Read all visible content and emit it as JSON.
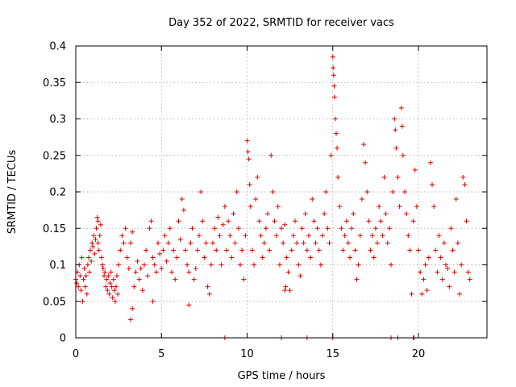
{
  "chart_data": {
    "type": "scatter",
    "title": "Day 352 of 2022, SRMTID for receiver vacs",
    "xlabel": "GPS time / hours",
    "ylabel": "SRMTID / TECUs",
    "xlim": [
      0,
      24
    ],
    "ylim": [
      0,
      0.4
    ],
    "xticks": [
      0,
      5,
      10,
      15,
      20
    ],
    "xtick_labels": [
      "0",
      "5",
      "10",
      "15",
      "20"
    ],
    "yticks": [
      0,
      0.05,
      0.1,
      0.15,
      0.2,
      0.25,
      0.3,
      0.35,
      0.4
    ],
    "ytick_labels": [
      "0",
      "0.05",
      "0.1",
      "0.15",
      "0.2",
      "0.25",
      "0.3",
      "0.35",
      "0.4"
    ],
    "grid": true,
    "marker": "plus",
    "color": "#e00000",
    "series": [
      {
        "name": "SRMTID",
        "points": [
          [
            0.0,
            0.08
          ],
          [
            0.05,
            0.075
          ],
          [
            0.1,
            0.09
          ],
          [
            0.15,
            0.07
          ],
          [
            0.2,
            0.1
          ],
          [
            0.25,
            0.085
          ],
          [
            0.3,
            0.065
          ],
          [
            0.35,
            0.11
          ],
          [
            0.4,
            0.05
          ],
          [
            0.45,
            0.08
          ],
          [
            0.5,
            0.095
          ],
          [
            0.55,
            0.07
          ],
          [
            0.6,
            0.085
          ],
          [
            0.65,
            0.06
          ],
          [
            0.7,
            0.1
          ],
          [
            0.75,
            0.11
          ],
          [
            0.8,
            0.09
          ],
          [
            0.85,
            0.12
          ],
          [
            0.9,
            0.105
          ],
          [
            0.95,
            0.13
          ],
          [
            1.0,
            0.125
          ],
          [
            1.05,
            0.14
          ],
          [
            1.1,
            0.115
          ],
          [
            1.15,
            0.135
          ],
          [
            1.2,
            0.15
          ],
          [
            1.25,
            0.165
          ],
          [
            1.3,
            0.13
          ],
          [
            1.35,
            0.12
          ],
          [
            1.4,
            0.14
          ],
          [
            1.45,
            0.155
          ],
          [
            1.5,
            0.11
          ],
          [
            1.55,
            0.1
          ],
          [
            1.6,
            0.095
          ],
          [
            1.65,
            0.085
          ],
          [
            1.7,
            0.09
          ],
          [
            1.75,
            0.07
          ],
          [
            1.8,
            0.08
          ],
          [
            1.85,
            0.065
          ],
          [
            1.9,
            0.085
          ],
          [
            1.95,
            0.06
          ],
          [
            2.0,
            0.075
          ],
          [
            2.05,
            0.09
          ],
          [
            2.1,
            0.07
          ],
          [
            2.15,
            0.055
          ],
          [
            2.2,
            0.08
          ],
          [
            2.25,
            0.065
          ],
          [
            2.3,
            0.05
          ],
          [
            2.35,
            0.07
          ],
          [
            2.4,
            0.085
          ],
          [
            2.45,
            0.06
          ],
          [
            2.5,
            0.1
          ],
          [
            2.6,
            0.12
          ],
          [
            2.7,
            0.14
          ],
          [
            2.8,
            0.13
          ],
          [
            2.9,
            0.15
          ],
          [
            3.0,
            0.11
          ],
          [
            3.1,
            0.095
          ],
          [
            3.2,
            0.13
          ],
          [
            3.3,
            0.145
          ],
          [
            3.4,
            0.07
          ],
          [
            3.2,
            0.025
          ],
          [
            3.3,
            0.04
          ],
          [
            3.5,
            0.09
          ],
          [
            3.6,
            0.105
          ],
          [
            3.7,
            0.08
          ],
          [
            3.8,
            0.095
          ],
          [
            3.9,
            0.065
          ],
          [
            4.0,
            0.1
          ],
          [
            4.1,
            0.12
          ],
          [
            4.2,
            0.085
          ],
          [
            4.3,
            0.15
          ],
          [
            4.4,
            0.16
          ],
          [
            4.5,
            0.11
          ],
          [
            4.6,
            0.1
          ],
          [
            4.7,
            0.09
          ],
          [
            4.8,
            0.13
          ],
          [
            4.9,
            0.115
          ],
          [
            5.0,
            0.095
          ],
          [
            5.1,
            0.12
          ],
          [
            5.2,
            0.14
          ],
          [
            5.3,
            0.105
          ],
          [
            5.4,
            0.13
          ],
          [
            5.5,
            0.15
          ],
          [
            5.6,
            0.09
          ],
          [
            5.7,
            0.12
          ],
          [
            5.8,
            0.08
          ],
          [
            5.9,
            0.11
          ],
          [
            6.0,
            0.16
          ],
          [
            6.1,
            0.135
          ],
          [
            6.2,
            0.19
          ],
          [
            6.3,
            0.175
          ],
          [
            6.4,
            0.12
          ],
          [
            6.5,
            0.1
          ],
          [
            6.6,
            0.09
          ],
          [
            6.7,
            0.13
          ],
          [
            6.8,
            0.15
          ],
          [
            6.9,
            0.08
          ],
          [
            7.0,
            0.095
          ],
          [
            7.1,
            0.12
          ],
          [
            7.2,
            0.14
          ],
          [
            7.3,
            0.2
          ],
          [
            7.4,
            0.16
          ],
          [
            7.5,
            0.11
          ],
          [
            7.6,
            0.13
          ],
          [
            7.7,
            0.07
          ],
          [
            7.8,
            0.06
          ],
          [
            7.9,
            0.1
          ],
          [
            8.0,
            0.13
          ],
          [
            8.1,
            0.15
          ],
          [
            8.2,
            0.12
          ],
          [
            8.3,
            0.165
          ],
          [
            8.4,
            0.14
          ],
          [
            8.5,
            0.1
          ],
          [
            8.6,
            0.155
          ],
          [
            8.7,
            0.18
          ],
          [
            8.8,
            0.12
          ],
          [
            8.9,
            0.16
          ],
          [
            9.0,
            0.14
          ],
          [
            9.1,
            0.11
          ],
          [
            9.2,
            0.17
          ],
          [
            9.3,
            0.13
          ],
          [
            9.4,
            0.2
          ],
          [
            9.5,
            0.15
          ],
          [
            9.6,
            0.1
          ],
          [
            9.7,
            0.12
          ],
          [
            9.8,
            0.08
          ],
          [
            9.9,
            0.14
          ],
          [
            10.0,
            0.27
          ],
          [
            10.05,
            0.255
          ],
          [
            10.1,
            0.245
          ],
          [
            10.15,
            0.21
          ],
          [
            10.2,
            0.18
          ],
          [
            10.3,
            0.12
          ],
          [
            10.4,
            0.1
          ],
          [
            10.5,
            0.19
          ],
          [
            10.6,
            0.22
          ],
          [
            10.7,
            0.16
          ],
          [
            10.8,
            0.14
          ],
          [
            10.9,
            0.11
          ],
          [
            11.0,
            0.13
          ],
          [
            11.1,
            0.15
          ],
          [
            11.2,
            0.17
          ],
          [
            11.3,
            0.12
          ],
          [
            11.4,
            0.25
          ],
          [
            11.5,
            0.2
          ],
          [
            11.6,
            0.16
          ],
          [
            11.7,
            0.14
          ],
          [
            11.8,
            0.18
          ],
          [
            11.9,
            0.1
          ],
          [
            12.0,
            0.15
          ],
          [
            12.1,
            0.13
          ],
          [
            12.2,
            0.155
          ],
          [
            12.3,
            0.11
          ],
          [
            12.4,
            0.09
          ],
          [
            12.5,
            0.065
          ],
          [
            12.6,
            0.12
          ],
          [
            12.7,
            0.14
          ],
          [
            12.8,
            0.16
          ],
          [
            12.9,
            0.13
          ],
          [
            13.0,
            0.1
          ],
          [
            13.1,
            0.085
          ],
          [
            13.2,
            0.15
          ],
          [
            13.3,
            0.13
          ],
          [
            13.4,
            0.17
          ],
          [
            13.5,
            0.12
          ],
          [
            13.6,
            0.14
          ],
          [
            13.7,
            0.11
          ],
          [
            13.8,
            0.19
          ],
          [
            13.9,
            0.16
          ],
          [
            14.0,
            0.13
          ],
          [
            14.1,
            0.15
          ],
          [
            14.2,
            0.12
          ],
          [
            14.3,
            0.1
          ],
          [
            14.4,
            0.14
          ],
          [
            14.5,
            0.17
          ],
          [
            14.6,
            0.2
          ],
          [
            14.7,
            0.15
          ],
          [
            14.8,
            0.13
          ],
          [
            14.9,
            0.25
          ],
          [
            15.0,
            0.385
          ],
          [
            15.02,
            0.37
          ],
          [
            15.05,
            0.36
          ],
          [
            15.08,
            0.345
          ],
          [
            15.1,
            0.33
          ],
          [
            15.15,
            0.3
          ],
          [
            15.2,
            0.28
          ],
          [
            15.25,
            0.26
          ],
          [
            15.3,
            0.22
          ],
          [
            15.4,
            0.18
          ],
          [
            15.5,
            0.15
          ],
          [
            15.6,
            0.12
          ],
          [
            15.7,
            0.14
          ],
          [
            15.8,
            0.16
          ],
          [
            15.9,
            0.13
          ],
          [
            16.0,
            0.11
          ],
          [
            16.1,
            0.15
          ],
          [
            16.2,
            0.17
          ],
          [
            16.3,
            0.12
          ],
          [
            16.4,
            0.08
          ],
          [
            16.5,
            0.1
          ],
          [
            16.6,
            0.14
          ],
          [
            16.7,
            0.19
          ],
          [
            16.8,
            0.265
          ],
          [
            16.9,
            0.24
          ],
          [
            17.0,
            0.2
          ],
          [
            17.1,
            0.16
          ],
          [
            17.2,
            0.12
          ],
          [
            17.3,
            0.14
          ],
          [
            17.4,
            0.11
          ],
          [
            17.5,
            0.15
          ],
          [
            17.6,
            0.13
          ],
          [
            17.7,
            0.18
          ],
          [
            17.8,
            0.16
          ],
          [
            17.9,
            0.14
          ],
          [
            18.0,
            0.22
          ],
          [
            18.1,
            0.17
          ],
          [
            18.2,
            0.13
          ],
          [
            18.3,
            0.15
          ],
          [
            18.4,
            0.1
          ],
          [
            18.5,
            0.2
          ],
          [
            18.6,
            0.3
          ],
          [
            18.65,
            0.285
          ],
          [
            18.7,
            0.26
          ],
          [
            18.8,
            0.22
          ],
          [
            18.9,
            0.18
          ],
          [
            19.0,
            0.315
          ],
          [
            19.05,
            0.29
          ],
          [
            19.1,
            0.25
          ],
          [
            19.2,
            0.2
          ],
          [
            19.3,
            0.17
          ],
          [
            19.4,
            0.14
          ],
          [
            19.5,
            0.12
          ],
          [
            19.6,
            0.06
          ],
          [
            19.7,
            0.16
          ],
          [
            19.8,
            0.23
          ],
          [
            19.9,
            0.18
          ],
          [
            20.0,
            0.12
          ],
          [
            20.1,
            0.09
          ],
          [
            20.2,
            0.06
          ],
          [
            20.3,
            0.08
          ],
          [
            20.4,
            0.1
          ],
          [
            20.5,
            0.065
          ],
          [
            20.6,
            0.11
          ],
          [
            20.7,
            0.24
          ],
          [
            20.8,
            0.21
          ],
          [
            20.9,
            0.18
          ],
          [
            21.0,
            0.12
          ],
          [
            21.1,
            0.09
          ],
          [
            21.2,
            0.14
          ],
          [
            21.3,
            0.11
          ],
          [
            21.4,
            0.08
          ],
          [
            21.5,
            0.13
          ],
          [
            21.6,
            0.1
          ],
          [
            21.7,
            0.095
          ],
          [
            21.8,
            0.07
          ],
          [
            21.9,
            0.15
          ],
          [
            22.0,
            0.12
          ],
          [
            22.1,
            0.09
          ],
          [
            22.2,
            0.19
          ],
          [
            22.3,
            0.13
          ],
          [
            22.4,
            0.06
          ],
          [
            22.5,
            0.1
          ],
          [
            22.6,
            0.22
          ],
          [
            22.7,
            0.21
          ],
          [
            22.8,
            0.16
          ],
          [
            22.9,
            0.09
          ],
          [
            23.0,
            0.08
          ],
          [
            8.7,
            0.0
          ],
          [
            12.0,
            0.0
          ],
          [
            13.5,
            0.0
          ],
          [
            15.0,
            0.0
          ],
          [
            18.4,
            0.0
          ],
          [
            18.8,
            0.0
          ],
          [
            19.7,
            0.0
          ],
          [
            19.75,
            0.0
          ],
          [
            12.2,
            0.065
          ],
          [
            12.25,
            0.07
          ],
          [
            1.3,
            0.16
          ],
          [
            4.5,
            0.05
          ],
          [
            6.6,
            0.045
          ]
        ]
      }
    ]
  }
}
